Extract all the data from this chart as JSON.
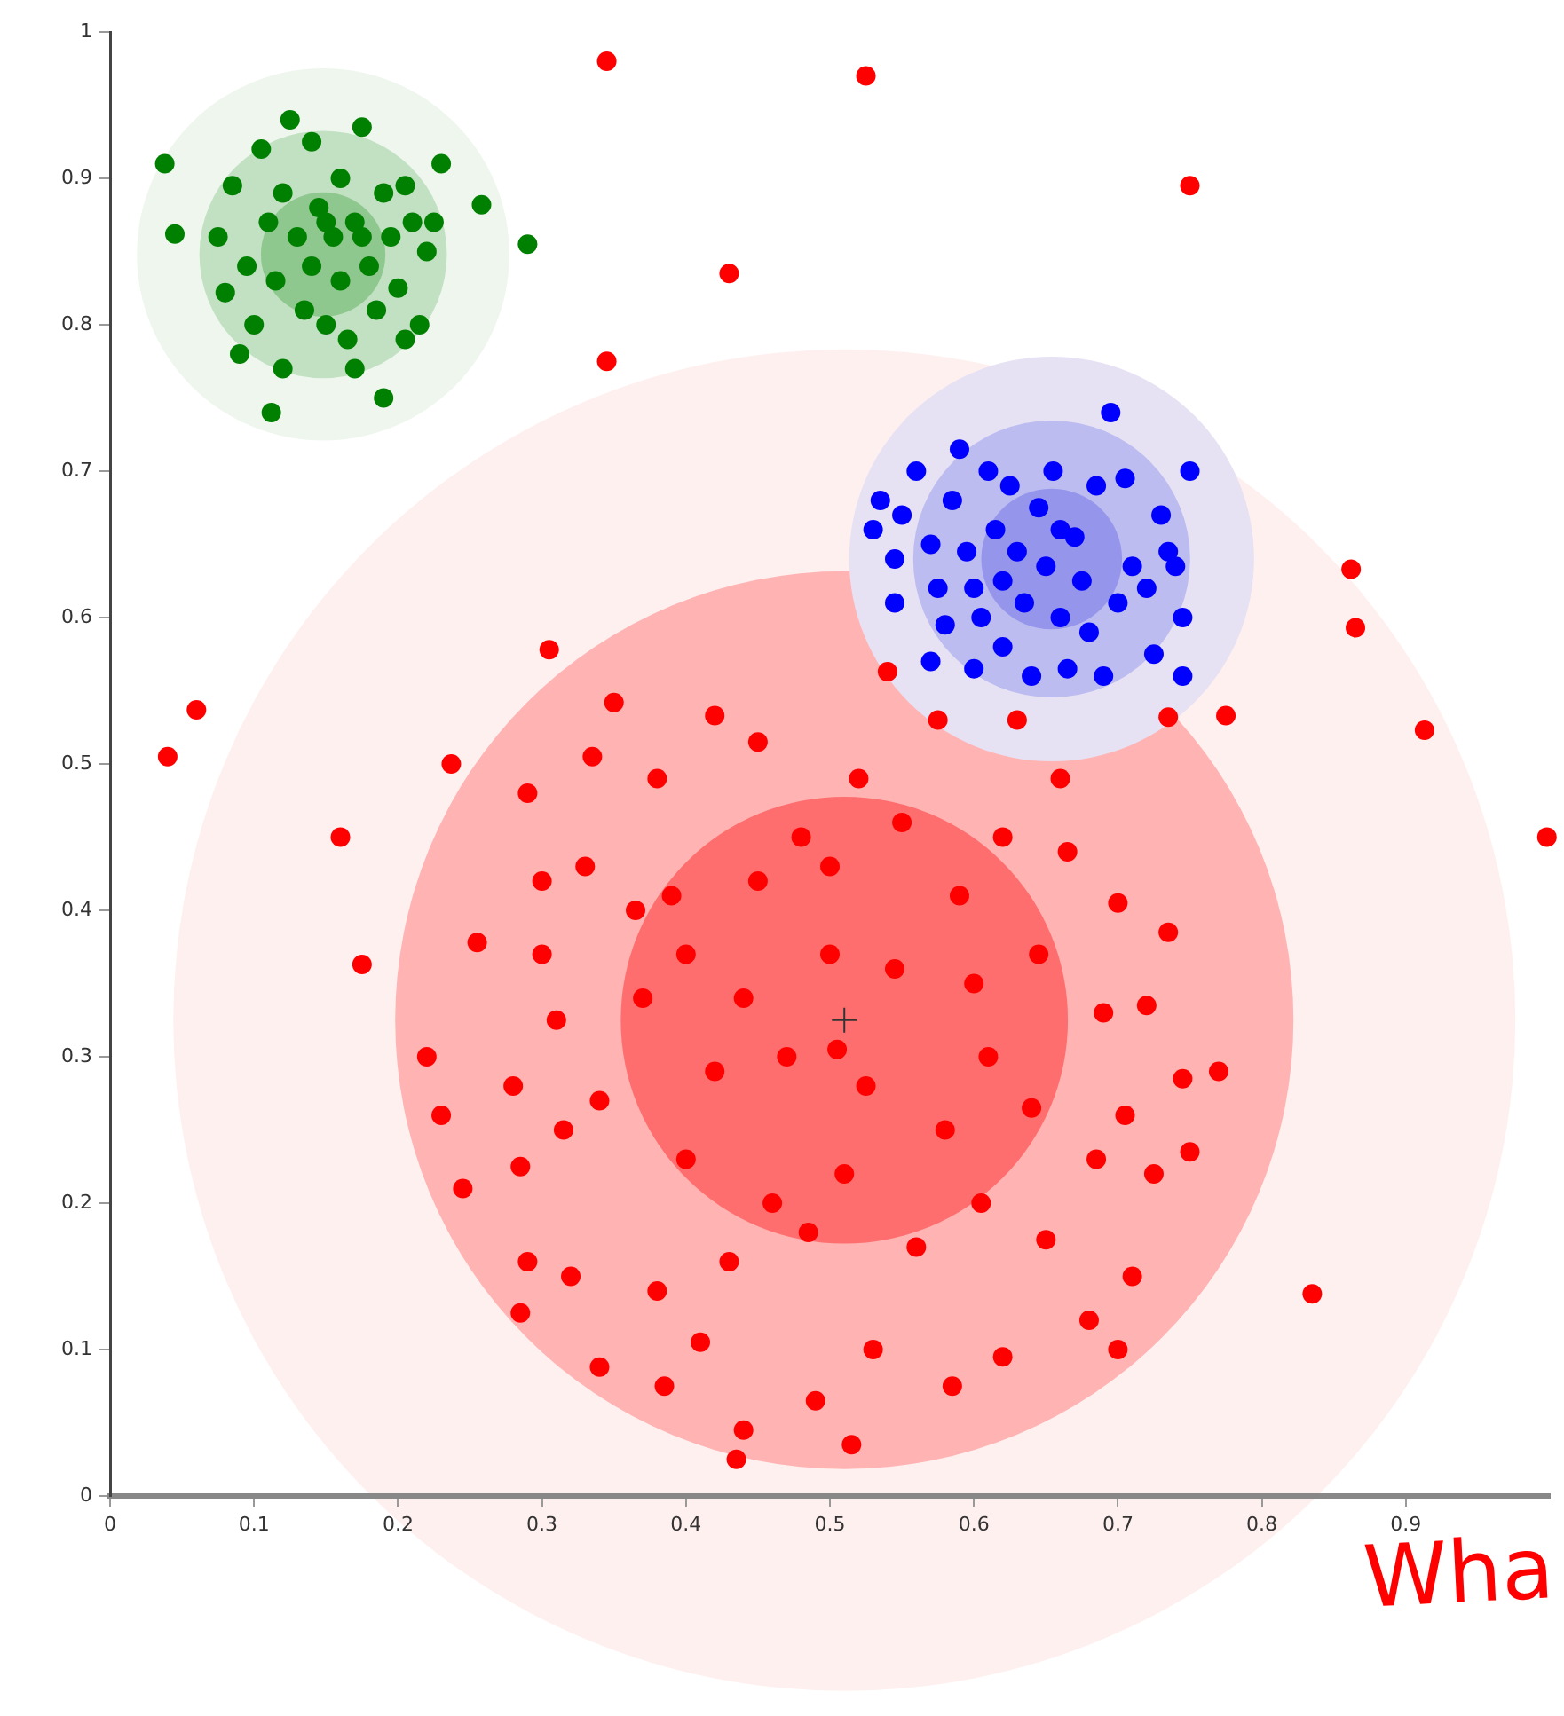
{
  "chart_data": {
    "type": "scatter",
    "xlim": [
      0,
      1
    ],
    "ylim": [
      0,
      1
    ],
    "xticks": [
      0,
      0.1,
      0.2,
      0.3,
      0.4,
      0.5,
      0.6,
      0.7,
      0.8,
      0.9
    ],
    "yticks": [
      0,
      0.1,
      0.2,
      0.3,
      0.4,
      0.5,
      0.6,
      0.7,
      0.8,
      0.9,
      1
    ],
    "marker": "circle",
    "annotations": [
      "Wha"
    ],
    "series": [
      {
        "type": "bubble",
        "x": [
          0.51,
          0.51,
          0.51
        ],
        "values": [
          0.325,
          0.325,
          0.325
        ],
        "sizes": [
          1,
          0.448,
          0.111
        ],
        "colors": [
          "#fff0f0",
          "#ffb3b3",
          "#ff6e6e"
        ]
      },
      {
        "type": "bubble",
        "x": [
          0.148,
          0.148,
          0.148
        ],
        "values": [
          0.848,
          0.848,
          0.848
        ],
        "sizes": [
          0.077,
          0.034,
          0.0086
        ],
        "colors": [
          "#eef6ee",
          "#c2e0c2",
          "#8fc88f"
        ]
      },
      {
        "type": "bubble",
        "x": [
          0.654,
          0.654,
          0.654
        ],
        "values": [
          0.64,
          0.64,
          0.64
        ],
        "sizes": [
          0.091,
          0.0426,
          0.011
        ],
        "colors": [
          "#e6e2f4",
          "#bdbcf0",
          "#9595ec"
        ]
      },
      {
        "color": "#ff0000",
        "x": [
          0.345,
          0.525,
          0.75,
          0.43,
          0.345,
          0.04,
          0.06,
          0.16,
          0.175,
          0.237,
          0.305,
          0.862,
          0.865,
          0.913,
          0.998,
          0.835,
          0.775,
          0.735,
          0.54,
          0.22,
          0.23,
          0.245,
          0.255,
          0.28,
          0.285,
          0.29,
          0.285,
          0.29,
          0.3,
          0.3,
          0.31,
          0.315,
          0.32,
          0.33,
          0.335,
          0.34,
          0.34,
          0.35,
          0.365,
          0.37,
          0.38,
          0.38,
          0.385,
          0.39,
          0.4,
          0.4,
          0.41,
          0.42,
          0.42,
          0.43,
          0.435,
          0.44,
          0.44,
          0.45,
          0.45,
          0.46,
          0.47,
          0.48,
          0.485,
          0.49,
          0.5,
          0.5,
          0.505,
          0.51,
          0.515,
          0.52,
          0.525,
          0.53,
          0.545,
          0.55,
          0.56,
          0.575,
          0.58,
          0.585,
          0.59,
          0.6,
          0.605,
          0.61,
          0.62,
          0.62,
          0.63,
          0.64,
          0.645,
          0.65,
          0.66,
          0.665,
          0.68,
          0.685,
          0.69,
          0.7,
          0.705,
          0.71,
          0.72,
          0.725,
          0.735,
          0.745,
          0.75,
          0.77,
          0.7
        ],
        "values": [
          0.98,
          0.97,
          0.895,
          0.835,
          0.775,
          0.505,
          0.537,
          0.45,
          0.363,
          0.5,
          0.578,
          0.633,
          0.593,
          0.523,
          0.45,
          0.138,
          0.533,
          0.532,
          0.563,
          0.3,
          0.26,
          0.21,
          0.378,
          0.28,
          0.225,
          0.16,
          0.125,
          0.48,
          0.42,
          0.37,
          0.325,
          0.25,
          0.15,
          0.43,
          0.505,
          0.27,
          0.088,
          0.542,
          0.4,
          0.34,
          0.49,
          0.14,
          0.075,
          0.41,
          0.37,
          0.23,
          0.105,
          0.533,
          0.29,
          0.16,
          0.025,
          0.045,
          0.34,
          0.515,
          0.42,
          0.2,
          0.3,
          0.45,
          0.18,
          0.065,
          0.43,
          0.37,
          0.305,
          0.22,
          0.035,
          0.49,
          0.28,
          0.1,
          0.36,
          0.46,
          0.17,
          0.53,
          0.25,
          0.075,
          0.41,
          0.35,
          0.2,
          0.3,
          0.45,
          0.095,
          0.53,
          0.265,
          0.37,
          0.175,
          0.49,
          0.44,
          0.12,
          0.23,
          0.33,
          0.405,
          0.26,
          0.15,
          0.335,
          0.22,
          0.385,
          0.285,
          0.235,
          0.29,
          0.1
        ]
      },
      {
        "color": "#008000",
        "x": [
          0.038,
          0.045,
          0.075,
          0.08,
          0.085,
          0.09,
          0.095,
          0.1,
          0.105,
          0.11,
          0.112,
          0.115,
          0.12,
          0.12,
          0.125,
          0.13,
          0.135,
          0.14,
          0.14,
          0.145,
          0.15,
          0.155,
          0.16,
          0.16,
          0.165,
          0.17,
          0.17,
          0.175,
          0.18,
          0.185,
          0.19,
          0.19,
          0.195,
          0.2,
          0.205,
          0.205,
          0.21,
          0.215,
          0.22,
          0.225,
          0.23,
          0.258,
          0.29,
          0.175,
          0.15
        ],
        "values": [
          0.91,
          0.862,
          0.86,
          0.822,
          0.895,
          0.78,
          0.84,
          0.8,
          0.92,
          0.87,
          0.74,
          0.83,
          0.89,
          0.77,
          0.94,
          0.86,
          0.81,
          0.925,
          0.84,
          0.88,
          0.8,
          0.86,
          0.9,
          0.83,
          0.79,
          0.87,
          0.77,
          0.935,
          0.84,
          0.81,
          0.89,
          0.75,
          0.86,
          0.825,
          0.895,
          0.79,
          0.87,
          0.8,
          0.85,
          0.87,
          0.91,
          0.882,
          0.855,
          0.86,
          0.87
        ]
      },
      {
        "color": "#0000ff",
        "x": [
          0.53,
          0.535,
          0.545,
          0.545,
          0.55,
          0.56,
          0.57,
          0.57,
          0.575,
          0.58,
          0.585,
          0.59,
          0.595,
          0.6,
          0.605,
          0.61,
          0.615,
          0.62,
          0.62,
          0.625,
          0.63,
          0.635,
          0.64,
          0.645,
          0.65,
          0.655,
          0.66,
          0.665,
          0.67,
          0.675,
          0.68,
          0.685,
          0.69,
          0.695,
          0.7,
          0.705,
          0.71,
          0.72,
          0.725,
          0.73,
          0.735,
          0.74,
          0.745,
          0.75,
          0.745,
          0.6,
          0.66
        ],
        "values": [
          0.66,
          0.68,
          0.64,
          0.61,
          0.67,
          0.7,
          0.65,
          0.57,
          0.62,
          0.595,
          0.68,
          0.715,
          0.645,
          0.565,
          0.6,
          0.7,
          0.66,
          0.625,
          0.58,
          0.69,
          0.645,
          0.61,
          0.56,
          0.675,
          0.635,
          0.7,
          0.6,
          0.565,
          0.655,
          0.625,
          0.59,
          0.69,
          0.56,
          0.74,
          0.61,
          0.695,
          0.635,
          0.62,
          0.575,
          0.67,
          0.645,
          0.635,
          0.6,
          0.7,
          0.56,
          0.62,
          0.66
        ]
      },
      {
        "color": "#333333",
        "marker": "cross",
        "x": [
          0.51
        ],
        "values": [
          0.325
        ]
      }
    ]
  }
}
